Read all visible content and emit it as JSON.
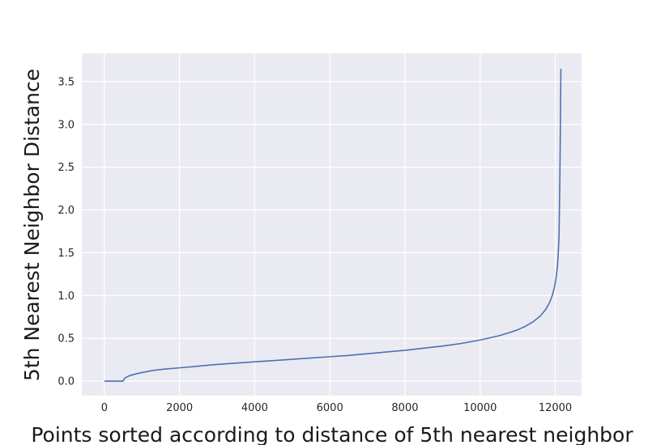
{
  "chart_data": {
    "type": "line",
    "title": "",
    "xlabel": "Points sorted according to distance of 5th nearest neighbor",
    "ylabel": "5th Nearest Neighbor Distance",
    "xlim": [
      -600,
      12700
    ],
    "ylim": [
      -0.17,
      3.83
    ],
    "xticks": [
      0,
      2000,
      4000,
      6000,
      8000,
      10000,
      12000
    ],
    "xtick_labels": [
      "0",
      "2000",
      "4000",
      "6000",
      "8000",
      "10000",
      "12000"
    ],
    "yticks": [
      0.0,
      0.5,
      1.0,
      1.5,
      2.0,
      2.5,
      3.0,
      3.5
    ],
    "ytick_labels": [
      "0.0",
      "0.5",
      "1.0",
      "1.5",
      "2.0",
      "2.5",
      "3.0",
      "3.5"
    ],
    "grid": true,
    "legend": "none",
    "colors": {
      "background": "#eaeaf2",
      "grid": "#ffffff",
      "line": "#4c72b0"
    },
    "series": [
      {
        "x": [
          0,
          500,
          520,
          560,
          650,
          800,
          1000,
          1300,
          1600,
          2000,
          2500,
          3000,
          3500,
          4000,
          4500,
          5000,
          5500,
          6000,
          6500,
          7000,
          7500,
          8000,
          8500,
          9000,
          9500,
          10000,
          10500,
          10800,
          11000,
          11200,
          11400,
          11600,
          11750,
          11850,
          11920,
          11980,
          12020,
          12060,
          12080,
          12100,
          12110,
          12120,
          12130,
          12140,
          12150
        ],
        "y": [
          0.0,
          0.0,
          0.02,
          0.04,
          0.06,
          0.08,
          0.1,
          0.125,
          0.14,
          0.155,
          0.175,
          0.195,
          0.21,
          0.225,
          0.24,
          0.255,
          0.27,
          0.285,
          0.3,
          0.32,
          0.34,
          0.36,
          0.385,
          0.41,
          0.44,
          0.48,
          0.53,
          0.57,
          0.6,
          0.64,
          0.69,
          0.76,
          0.84,
          0.92,
          1.0,
          1.1,
          1.2,
          1.35,
          1.5,
          1.7,
          2.0,
          2.3,
          2.7,
          3.2,
          3.65
        ]
      }
    ]
  }
}
